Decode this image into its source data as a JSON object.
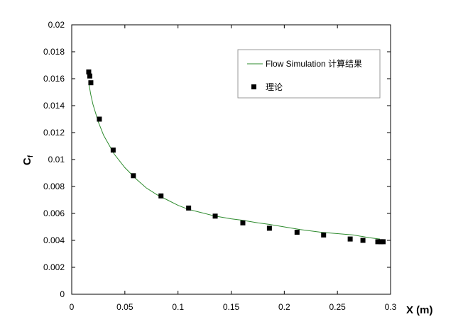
{
  "chart_data": {
    "type": "scatter",
    "xlabel": "X (m)",
    "ylabel": "Cf",
    "ylabel_main": "C",
    "ylabel_sub": "f",
    "xlim": [
      0,
      0.3
    ],
    "ylim": [
      0,
      0.02
    ],
    "x_ticks": [
      0,
      0.05,
      0.1,
      0.15,
      0.2,
      0.25,
      0.3
    ],
    "x_tick_labels": [
      "0",
      "0.05",
      "0.1",
      "0.15",
      "0.2",
      "0.25",
      "0.3"
    ],
    "y_ticks": [
      0,
      0.002,
      0.004,
      0.006,
      0.008,
      0.01,
      0.012,
      0.014,
      0.016,
      0.018,
      0.02
    ],
    "y_tick_labels": [
      "0",
      "0.002",
      "0.004",
      "0.006",
      "0.008",
      "0.01",
      "0.012",
      "0.014",
      "0.016",
      "0.018",
      "0.02"
    ],
    "grid": false,
    "legend_position": "top-right",
    "series": [
      {
        "name": "Flow Simulation 计算结果",
        "kind": "line",
        "color": "#2e8b2e",
        "x": [
          0.016,
          0.018,
          0.02,
          0.025,
          0.03,
          0.035,
          0.04,
          0.05,
          0.06,
          0.07,
          0.08,
          0.09,
          0.1,
          0.11,
          0.12,
          0.135,
          0.15,
          0.16,
          0.175,
          0.185,
          0.2,
          0.215,
          0.235,
          0.25,
          0.265,
          0.28,
          0.29
        ],
        "y": [
          0.0157,
          0.0148,
          0.0141,
          0.0128,
          0.0118,
          0.0111,
          0.0104,
          0.0094,
          0.0086,
          0.0079,
          0.0074,
          0.007,
          0.0066,
          0.0063,
          0.0061,
          0.0058,
          0.0056,
          0.0055,
          0.0053,
          0.0052,
          0.005,
          0.0048,
          0.0046,
          0.0045,
          0.0044,
          0.0042,
          0.0041
        ]
      },
      {
        "name": "理论",
        "kind": "markers",
        "color": "#000000",
        "x": [
          0.016,
          0.017,
          0.018,
          0.026,
          0.039,
          0.058,
          0.084,
          0.11,
          0.135,
          0.161,
          0.186,
          0.212,
          0.237,
          0.262,
          0.274,
          0.288,
          0.291,
          0.293
        ],
        "y": [
          0.0165,
          0.0162,
          0.0157,
          0.013,
          0.0107,
          0.0088,
          0.0073,
          0.0064,
          0.0058,
          0.0053,
          0.0049,
          0.0046,
          0.0044,
          0.0041,
          0.004,
          0.0039,
          0.0039,
          0.0039
        ]
      }
    ]
  }
}
